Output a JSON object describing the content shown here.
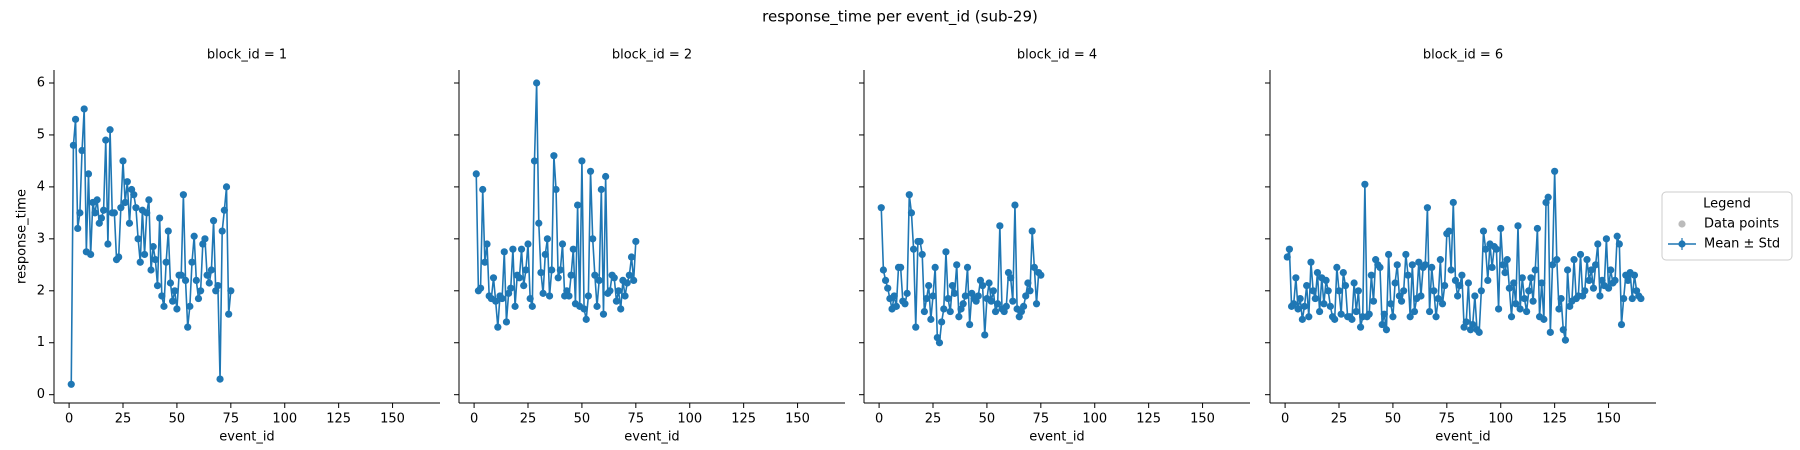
{
  "title": "response_time per event_id (sub-29)",
  "legend": {
    "title": "Legend",
    "corner": "right",
    "items": [
      {
        "name": "Data points",
        "color": "#bbbbbb"
      },
      {
        "name": "Mean ± Std",
        "color": "#1f77b4"
      }
    ]
  },
  "chart_data": [
    {
      "type": "line",
      "title": "block_id = 1",
      "xlabel": "event_id",
      "ylabel": "response_time",
      "color": "#1f77b4",
      "xlim": [
        -7,
        172
      ],
      "ylim": [
        -0.16,
        6.25
      ],
      "xticks": [
        0,
        25,
        50,
        75,
        100,
        125,
        150
      ],
      "yticks": [
        0,
        1,
        2,
        3,
        4,
        5,
        6
      ],
      "x": [
        1,
        2,
        3,
        4,
        5,
        6,
        7,
        8,
        9,
        10,
        11,
        12,
        13,
        14,
        15,
        16,
        17,
        18,
        19,
        20,
        21,
        22,
        23,
        24,
        25,
        26,
        27,
        28,
        29,
        30,
        31,
        32,
        33,
        34,
        35,
        36,
        37,
        38,
        39,
        40,
        41,
        42,
        43,
        44,
        45,
        46,
        47,
        48,
        49,
        50,
        51,
        52,
        53,
        54,
        55,
        56,
        57,
        58,
        59,
        60,
        61,
        62,
        63,
        64,
        65,
        66,
        67,
        68,
        69,
        70,
        71,
        72,
        73,
        74,
        75
      ],
      "values": [
        0.2,
        4.8,
        5.3,
        3.2,
        3.5,
        4.7,
        5.5,
        2.75,
        4.25,
        2.7,
        3.7,
        3.5,
        3.75,
        3.3,
        3.4,
        3.55,
        4.9,
        2.9,
        5.1,
        3.5,
        3.5,
        2.6,
        2.65,
        3.6,
        4.5,
        3.7,
        4.1,
        3.3,
        3.95,
        3.85,
        3.6,
        3.0,
        2.55,
        3.55,
        2.7,
        3.5,
        3.75,
        2.4,
        2.85,
        2.6,
        2.1,
        3.4,
        1.9,
        1.7,
        2.55,
        3.15,
        2.15,
        1.8,
        2.0,
        1.65,
        2.3,
        2.3,
        3.85,
        2.2,
        1.3,
        1.7,
        2.55,
        3.05,
        2.2,
        1.85,
        2.0,
        2.9,
        3.0,
        2.3,
        2.15,
        2.4,
        3.35,
        2.0,
        2.1,
        0.3,
        3.15,
        3.55,
        4.0,
        1.55,
        2.0
      ]
    },
    {
      "type": "line",
      "title": "block_id = 2",
      "xlabel": "event_id",
      "color": "#1f77b4",
      "xlim": [
        -7,
        172
      ],
      "ylim": [
        -0.16,
        6.25
      ],
      "xticks": [
        0,
        25,
        50,
        75,
        100,
        125,
        150
      ],
      "yticks": [
        0,
        1,
        2,
        3,
        4,
        5,
        6
      ],
      "x": [
        1,
        2,
        3,
        4,
        5,
        6,
        7,
        8,
        9,
        10,
        11,
        12,
        13,
        14,
        15,
        16,
        17,
        18,
        19,
        20,
        21,
        22,
        23,
        24,
        25,
        26,
        27,
        28,
        29,
        30,
        31,
        32,
        33,
        34,
        35,
        36,
        37,
        38,
        39,
        40,
        41,
        42,
        43,
        44,
        45,
        46,
        47,
        48,
        49,
        50,
        51,
        52,
        53,
        54,
        55,
        56,
        57,
        58,
        59,
        60,
        61,
        62,
        63,
        64,
        65,
        66,
        67,
        68,
        69,
        70,
        71,
        72,
        73,
        74,
        75
      ],
      "values": [
        4.25,
        2.0,
        2.05,
        3.95,
        2.55,
        2.9,
        1.9,
        1.85,
        2.25,
        1.8,
        1.3,
        1.9,
        1.85,
        2.75,
        1.4,
        1.95,
        2.05,
        2.8,
        1.7,
        2.3,
        2.25,
        2.8,
        2.1,
        2.4,
        2.9,
        1.85,
        1.7,
        4.5,
        6.0,
        3.3,
        2.35,
        1.95,
        2.7,
        3.0,
        1.9,
        2.4,
        4.6,
        3.95,
        2.25,
        2.4,
        2.9,
        1.9,
        2.0,
        1.9,
        2.3,
        2.8,
        1.75,
        3.65,
        1.7,
        4.5,
        1.65,
        1.45,
        1.9,
        4.3,
        3.0,
        2.3,
        1.7,
        2.2,
        3.95,
        1.55,
        4.2,
        1.95,
        2.0,
        2.3,
        2.25,
        1.8,
        2.0,
        1.65,
        2.2,
        1.9,
        2.15,
        2.3,
        2.65,
        2.2,
        2.95
      ]
    },
    {
      "type": "line",
      "title": "block_id = 4",
      "xlabel": "event_id",
      "color": "#1f77b4",
      "xlim": [
        -7,
        172
      ],
      "ylim": [
        -0.16,
        6.25
      ],
      "xticks": [
        0,
        25,
        50,
        75,
        100,
        125,
        150
      ],
      "yticks": [
        0,
        1,
        2,
        3,
        4,
        5,
        6
      ],
      "x": [
        1,
        2,
        3,
        4,
        5,
        6,
        7,
        8,
        9,
        10,
        11,
        12,
        13,
        14,
        15,
        16,
        17,
        18,
        19,
        20,
        21,
        22,
        23,
        24,
        25,
        26,
        27,
        28,
        29,
        30,
        31,
        32,
        33,
        34,
        35,
        36,
        37,
        38,
        39,
        40,
        41,
        42,
        43,
        44,
        45,
        46,
        47,
        48,
        49,
        50,
        51,
        52,
        53,
        54,
        55,
        56,
        57,
        58,
        59,
        60,
        61,
        62,
        63,
        64,
        65,
        66,
        67,
        68,
        69,
        70,
        71,
        72,
        73,
        74,
        75
      ],
      "values": [
        3.6,
        2.4,
        2.2,
        2.05,
        1.85,
        1.65,
        1.9,
        1.7,
        2.45,
        2.45,
        1.8,
        1.75,
        1.95,
        3.85,
        3.5,
        2.8,
        1.3,
        2.95,
        2.95,
        2.7,
        1.6,
        1.85,
        2.1,
        1.45,
        1.9,
        2.45,
        1.1,
        1.0,
        1.4,
        1.65,
        2.75,
        1.85,
        1.6,
        2.1,
        1.95,
        2.5,
        1.5,
        1.65,
        1.75,
        1.9,
        2.45,
        1.35,
        1.95,
        1.85,
        1.8,
        1.9,
        2.2,
        2.1,
        1.15,
        1.85,
        2.15,
        1.8,
        2.0,
        1.6,
        1.75,
        3.25,
        1.65,
        1.6,
        1.7,
        2.35,
        2.25,
        1.8,
        3.65,
        1.65,
        1.5,
        1.6,
        1.7,
        1.9,
        2.15,
        2.0,
        3.15,
        2.45,
        1.75,
        2.35,
        2.3
      ]
    },
    {
      "type": "line",
      "title": "block_id = 6",
      "xlabel": "event_id",
      "color": "#1f77b4",
      "xlim": [
        -7,
        172
      ],
      "ylim": [
        -0.16,
        6.25
      ],
      "xticks": [
        0,
        25,
        50,
        75,
        100,
        125,
        150
      ],
      "yticks": [
        0,
        1,
        2,
        3,
        4,
        5,
        6
      ],
      "x": [
        1,
        2,
        3,
        4,
        5,
        6,
        7,
        8,
        9,
        10,
        11,
        12,
        13,
        14,
        15,
        16,
        17,
        18,
        19,
        20,
        21,
        22,
        23,
        24,
        25,
        26,
        27,
        28,
        29,
        30,
        31,
        32,
        33,
        34,
        35,
        36,
        37,
        38,
        39,
        40,
        41,
        42,
        43,
        44,
        45,
        46,
        47,
        48,
        49,
        50,
        51,
        52,
        53,
        54,
        55,
        56,
        57,
        58,
        59,
        60,
        61,
        62,
        63,
        64,
        65,
        66,
        67,
        68,
        69,
        70,
        71,
        72,
        73,
        74,
        75,
        76,
        77,
        78,
        79,
        80,
        81,
        82,
        83,
        84,
        85,
        86,
        87,
        88,
        89,
        90,
        91,
        92,
        93,
        94,
        95,
        96,
        97,
        98,
        99,
        100,
        101,
        102,
        103,
        104,
        105,
        106,
        107,
        108,
        109,
        110,
        111,
        112,
        113,
        114,
        115,
        116,
        117,
        118,
        119,
        120,
        121,
        122,
        123,
        124,
        125,
        126,
        127,
        128,
        129,
        130,
        131,
        132,
        133,
        134,
        135,
        136,
        137,
        138,
        139,
        140,
        141,
        142,
        143,
        144,
        145,
        146,
        147,
        148,
        149,
        150,
        151,
        152,
        153,
        154,
        155,
        156,
        157,
        158,
        159,
        160,
        161,
        162,
        163,
        164,
        165
      ],
      "values": [
        2.65,
        2.8,
        1.7,
        1.75,
        2.25,
        1.65,
        1.85,
        1.45,
        1.7,
        2.1,
        1.5,
        2.55,
        2.0,
        1.85,
        2.35,
        1.6,
        2.25,
        1.75,
        2.2,
        2.0,
        1.7,
        1.5,
        1.45,
        2.45,
        2.0,
        1.55,
        2.35,
        2.1,
        1.5,
        1.5,
        1.45,
        2.15,
        1.6,
        2.0,
        1.3,
        1.5,
        4.05,
        1.5,
        1.55,
        2.3,
        1.8,
        2.6,
        2.5,
        2.45,
        1.35,
        1.55,
        1.25,
        2.7,
        1.75,
        1.5,
        2.15,
        2.5,
        1.9,
        1.8,
        2.0,
        2.7,
        2.3,
        1.5,
        2.5,
        1.6,
        1.85,
        2.55,
        1.9,
        2.45,
        2.5,
        3.6,
        1.6,
        2.45,
        2.0,
        1.5,
        1.85,
        2.6,
        1.75,
        2.1,
        3.1,
        3.15,
        2.4,
        3.7,
        2.2,
        1.9,
        2.1,
        2.3,
        1.3,
        1.4,
        2.15,
        1.25,
        1.35,
        1.9,
        1.25,
        1.2,
        2.0,
        3.15,
        2.8,
        2.2,
        2.9,
        2.45,
        2.85,
        2.8,
        1.65,
        3.2,
        2.5,
        2.35,
        2.6,
        2.05,
        1.5,
        2.15,
        1.75,
        3.25,
        1.65,
        2.25,
        1.85,
        1.6,
        2.0,
        2.25,
        1.8,
        2.4,
        3.2,
        1.5,
        2.15,
        1.45,
        3.7,
        3.8,
        1.2,
        2.5,
        4.3,
        2.6,
        1.65,
        1.85,
        1.25,
        1.05,
        2.4,
        1.7,
        1.8,
        2.6,
        1.85,
        1.9,
        2.7,
        1.9,
        2.0,
        2.6,
        2.2,
        2.4,
        2.05,
        2.5,
        2.9,
        1.9,
        2.2,
        2.1,
        3.0,
        2.05,
        2.4,
        2.15,
        2.2,
        3.05,
        2.9,
        1.35,
        1.85,
        2.3,
        2.2,
        2.35,
        1.85,
        2.3,
        2.0,
        1.9,
        1.85
      ]
    }
  ]
}
